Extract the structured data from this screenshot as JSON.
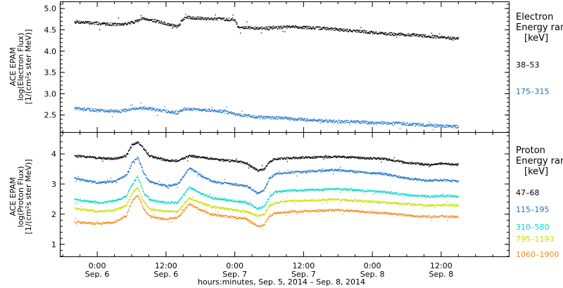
{
  "chart_data": [
    {
      "type": "scatter",
      "panel": "electron",
      "ylabel": [
        "ACE EPAM",
        "log(Electron Flux)",
        "[1/(cm²s ster MeV)]"
      ],
      "ylim": [
        2.1,
        5.15
      ],
      "yticks": [
        2.5,
        3.0,
        3.5,
        4.0,
        4.5,
        5.0
      ],
      "ytick_labels": [
        "2.5",
        "3.0",
        "3.5",
        "4.0",
        "4.5",
        "5.0"
      ],
      "legend_title": [
        "Electron",
        "Energy ran",
        "[keV]"
      ],
      "series": [
        {
          "name": "38–53",
          "color": "#000000",
          "x": [
            -4,
            0,
            4,
            6,
            8,
            10,
            12,
            14,
            15,
            16,
            18,
            22,
            24,
            24.5,
            28,
            34,
            40,
            46,
            50,
            56,
            62,
            63
          ],
          "y": [
            4.7,
            4.66,
            4.63,
            4.68,
            4.78,
            4.72,
            4.65,
            4.58,
            4.78,
            4.8,
            4.78,
            4.76,
            4.74,
            4.58,
            4.54,
            4.58,
            4.54,
            4.47,
            4.42,
            4.38,
            4.31,
            4.3
          ]
        },
        {
          "name": "175–315",
          "color": "#1a73c8",
          "x": [
            -4,
            0,
            4,
            8,
            12,
            14,
            15,
            18,
            22,
            24,
            28,
            32,
            36,
            40,
            44,
            48,
            52,
            56,
            60,
            63
          ],
          "y": [
            2.66,
            2.62,
            2.6,
            2.68,
            2.6,
            2.56,
            2.66,
            2.63,
            2.6,
            2.52,
            2.46,
            2.44,
            2.4,
            2.37,
            2.35,
            2.33,
            2.32,
            2.28,
            2.25,
            2.24
          ]
        }
      ]
    },
    {
      "type": "scatter",
      "panel": "proton",
      "ylabel": [
        "ACE EPAM",
        "log(Proton Flux)",
        "[1/(cm²s ster MeV)]"
      ],
      "ylim": [
        0.6,
        4.7
      ],
      "yticks": [
        1,
        2,
        3,
        4
      ],
      "ytick_labels": [
        "1",
        "2",
        "3",
        "4"
      ],
      "legend_title": [
        "Proton",
        "Energy ran",
        "[keV]"
      ],
      "series": [
        {
          "name": "47–68",
          "color": "#000000",
          "x": [
            -4,
            0,
            3,
            5,
            6,
            7,
            8,
            9,
            10,
            12,
            14,
            16,
            18,
            20,
            22,
            24,
            26,
            28,
            29,
            30,
            31,
            34,
            38,
            42,
            46,
            50,
            54,
            58,
            60,
            63
          ],
          "y": [
            3.95,
            3.88,
            3.85,
            3.95,
            4.3,
            4.4,
            4.2,
            3.95,
            3.9,
            3.8,
            3.78,
            3.95,
            3.9,
            3.85,
            3.8,
            3.78,
            3.7,
            3.45,
            3.5,
            3.75,
            3.85,
            3.88,
            3.9,
            3.92,
            3.88,
            3.85,
            3.72,
            3.65,
            3.7,
            3.65
          ]
        },
        {
          "name": "115–195",
          "color": "#1a73c8",
          "x": [
            -4,
            0,
            3,
            5,
            6,
            7,
            8,
            9,
            10,
            12,
            14,
            16,
            18,
            20,
            22,
            24,
            26,
            28,
            29,
            30,
            31,
            34,
            38,
            42,
            46,
            50,
            54,
            58,
            60,
            63
          ],
          "y": [
            3.2,
            3.05,
            3.1,
            3.3,
            3.7,
            3.9,
            3.4,
            3.1,
            3.05,
            2.95,
            3.0,
            3.55,
            3.3,
            3.1,
            3.05,
            3.0,
            2.95,
            2.7,
            2.8,
            3.2,
            3.35,
            3.4,
            3.45,
            3.48,
            3.4,
            3.35,
            3.2,
            3.12,
            3.15,
            3.1
          ]
        },
        {
          "name": "310–580",
          "color": "#00d8c8",
          "x": [
            -4,
            0,
            3,
            5,
            6,
            7,
            8,
            9,
            10,
            12,
            14,
            16,
            18,
            20,
            22,
            24,
            26,
            28,
            29,
            30,
            31,
            34,
            38,
            42,
            46,
            50,
            54,
            58,
            60,
            63
          ],
          "y": [
            2.5,
            2.4,
            2.45,
            2.6,
            3.0,
            3.25,
            2.75,
            2.5,
            2.45,
            2.4,
            2.4,
            2.9,
            2.7,
            2.55,
            2.5,
            2.45,
            2.4,
            2.2,
            2.25,
            2.6,
            2.75,
            2.8,
            2.82,
            2.85,
            2.8,
            2.75,
            2.65,
            2.6,
            2.62,
            2.6
          ]
        },
        {
          "name": "795–1193",
          "color": "#c8e000",
          "x": [
            -4,
            0,
            3,
            5,
            6,
            7,
            8,
            9,
            10,
            12,
            14,
            16,
            18,
            20,
            22,
            24,
            26,
            28,
            29,
            30,
            31,
            34,
            38,
            42,
            46,
            50,
            54,
            58,
            60,
            63
          ],
          "y": [
            2.2,
            2.1,
            2.15,
            2.3,
            2.7,
            2.9,
            2.45,
            2.2,
            2.15,
            2.1,
            2.1,
            2.55,
            2.4,
            2.25,
            2.2,
            2.15,
            2.1,
            1.95,
            2.0,
            2.3,
            2.4,
            2.45,
            2.48,
            2.5,
            2.45,
            2.4,
            2.35,
            2.3,
            2.32,
            2.3
          ]
        },
        {
          "name": "1060–1900",
          "color": "#f08c1e",
          "x": [
            -4,
            0,
            3,
            5,
            6,
            7,
            8,
            9,
            10,
            12,
            14,
            16,
            18,
            20,
            22,
            24,
            26,
            28,
            29,
            30,
            31,
            34,
            38,
            42,
            46,
            50,
            54,
            58,
            60,
            63
          ],
          "y": [
            1.75,
            1.7,
            1.75,
            1.95,
            2.45,
            2.65,
            2.2,
            1.95,
            1.9,
            1.85,
            1.9,
            2.35,
            2.15,
            2.0,
            1.95,
            1.9,
            1.85,
            1.6,
            1.65,
            1.95,
            2.05,
            2.1,
            2.12,
            2.15,
            2.1,
            2.05,
            1.98,
            1.92,
            1.95,
            1.92
          ]
        }
      ]
    }
  ],
  "x_axis": {
    "ticks": [
      {
        "x": 0,
        "time": "0:00",
        "day": "Sep. 6"
      },
      {
        "x": 12,
        "time": "12:00",
        "day": "Sep. 6"
      },
      {
        "x": 24,
        "time": "0:00",
        "day": "Sep. 7"
      },
      {
        "x": 36,
        "time": "12:00",
        "day": "Sep. 7"
      },
      {
        "x": 48,
        "time": "0:00",
        "day": "Sep. 8"
      },
      {
        "x": 60,
        "time": "12:00",
        "day": "Sep. 8"
      }
    ],
    "xlim": [
      -6.4,
      71.8
    ],
    "label": "hours:minutes, Sep.  5, 2014 – Sep.  8, 2014"
  }
}
